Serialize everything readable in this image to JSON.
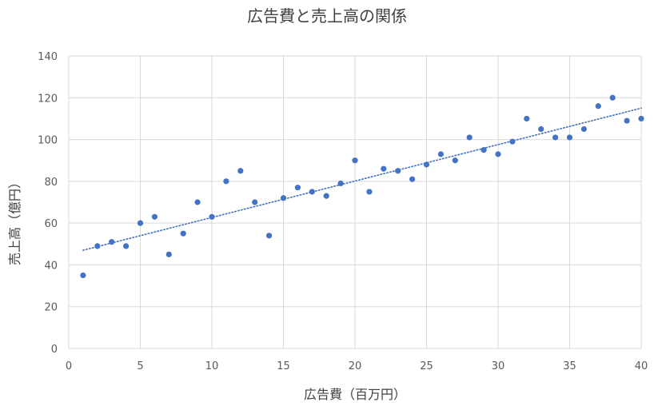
{
  "chart_data": {
    "type": "scatter",
    "title": "広告費と売上高の関係",
    "xlabel": "広告費（百万円）",
    "ylabel": "売上高（億円）",
    "xlim": [
      0,
      40
    ],
    "ylim": [
      0,
      140
    ],
    "x_ticks": [
      0,
      5,
      10,
      15,
      20,
      25,
      30,
      35,
      40
    ],
    "y_ticks": [
      0,
      20,
      40,
      60,
      80,
      100,
      120,
      140
    ],
    "grid": true,
    "legend": "none",
    "marker_color": "#4472C4",
    "trendline": {
      "type": "linear",
      "style": "dotted",
      "color": "#4472C4",
      "x_range": [
        1,
        40
      ],
      "y_range": [
        47,
        115
      ]
    },
    "series": [
      {
        "x": [
          1,
          2,
          3,
          4,
          5,
          6,
          7,
          8,
          9,
          10,
          11,
          12,
          13,
          14,
          15,
          16,
          17,
          18,
          19,
          20,
          21,
          22,
          23,
          24,
          25,
          26,
          27,
          28,
          29,
          30,
          31,
          32,
          33,
          34,
          35,
          36,
          37,
          38,
          39,
          40
        ],
        "y": [
          35,
          49,
          51,
          49,
          60,
          63,
          45,
          55,
          70,
          63,
          80,
          85,
          70,
          54,
          72,
          77,
          75,
          73,
          79,
          90,
          75,
          86,
          85,
          81,
          88,
          93,
          90,
          101,
          95,
          93,
          99,
          110,
          105,
          101,
          101,
          105,
          116,
          120,
          109,
          110
        ]
      }
    ]
  }
}
